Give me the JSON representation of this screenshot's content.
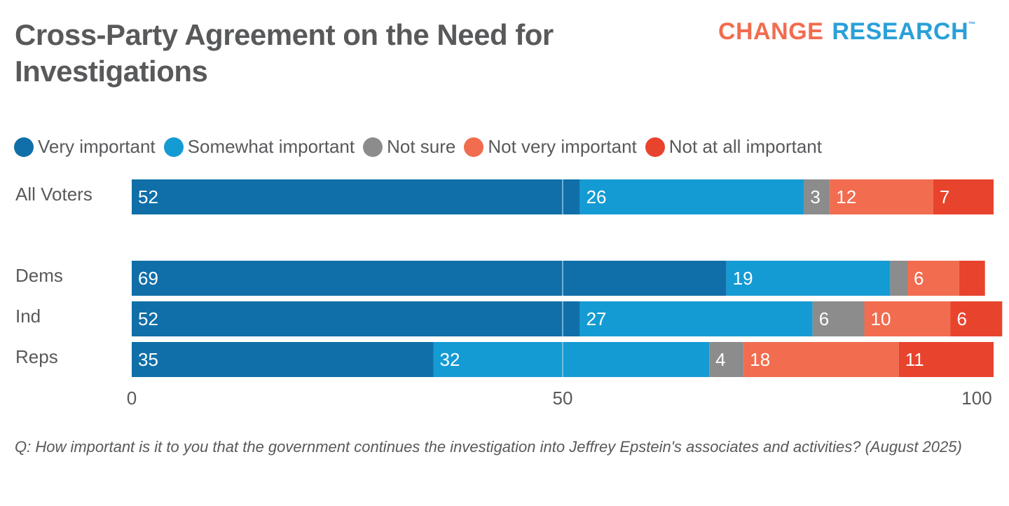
{
  "header": {
    "title": "Cross-Party Agreement on the Need for Investigations",
    "logo_part1": "CHANGE",
    "logo_part2": "RESEARCH",
    "logo_tm": "™"
  },
  "colors": {
    "very_important": "#106fa8",
    "somewhat_important": "#159bd3",
    "not_sure": "#8c8c8c",
    "not_very_important": "#f26c4f",
    "not_at_all_important": "#e8432d",
    "gridline": "#8fc6e8",
    "logo_orange": "#f26c4f",
    "logo_blue": "#2aa0d8"
  },
  "chart_data": {
    "type": "bar",
    "orientation": "horizontal",
    "stacked": true,
    "title": "Cross-Party Agreement on the Need for Investigations",
    "xlabel": "",
    "ylabel": "",
    "xlim": [
      0,
      100
    ],
    "x_ticks": [
      "0",
      "50",
      "100"
    ],
    "gridlines": [
      50
    ],
    "legend_position": "top-left",
    "categories": [
      "All Voters",
      "Dems",
      "Ind",
      "Reps"
    ],
    "series": [
      {
        "name": "Very important",
        "color": "#106fa8",
        "values": [
          52,
          69,
          52,
          35
        ],
        "labels": [
          "52",
          "69",
          "52",
          "35"
        ]
      },
      {
        "name": "Somewhat important",
        "color": "#159bd3",
        "values": [
          26,
          19,
          27,
          32
        ],
        "labels": [
          "26",
          "19",
          "27",
          "32"
        ]
      },
      {
        "name": "Not sure",
        "color": "#8c8c8c",
        "values": [
          3,
          2,
          6,
          4
        ],
        "labels": [
          "3",
          "",
          "6",
          "4"
        ]
      },
      {
        "name": "Not very important",
        "color": "#f26c4f",
        "values": [
          12,
          6,
          10,
          18
        ],
        "labels": [
          "12",
          "6",
          "10",
          "18"
        ]
      },
      {
        "name": "Not at all important",
        "color": "#e8432d",
        "values": [
          7,
          3,
          6,
          11
        ],
        "labels": [
          "7",
          "",
          "6",
          "11"
        ]
      }
    ]
  },
  "footnote": "Q: How important is it to you that the government continues the investigation into Jeffrey Epstein's associates and activities? (August 2025)"
}
